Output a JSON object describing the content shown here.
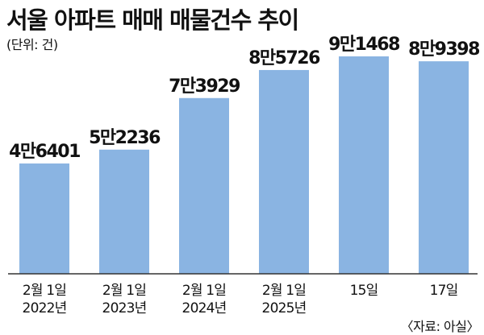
{
  "title": "서울 아파트 매매 매물건수 추이",
  "unit_note": "(단위: 건)",
  "source": "〈자료: 아실〉",
  "colors": {
    "bar": "#8ab4e2",
    "axis": "#333333",
    "text": "#111111"
  },
  "chart_data": {
    "type": "bar",
    "title": "서울 아파트 매매 매물건수 추이",
    "unit": "건",
    "categories": [
      [
        "2월 1일",
        "2022년"
      ],
      [
        "2월 1일",
        "2023년"
      ],
      [
        "2월 1일",
        "2024년"
      ],
      [
        "2월 1일",
        "2025년"
      ],
      [
        "15일",
        ""
      ],
      [
        "17일",
        ""
      ]
    ],
    "values": [
      46401,
      52236,
      73929,
      85726,
      91468,
      89398
    ],
    "value_labels": [
      "4만6401",
      "5만2236",
      "7만3929",
      "8만5726",
      "9만1468",
      "8만9398"
    ],
    "grid": false,
    "legend": "none"
  }
}
